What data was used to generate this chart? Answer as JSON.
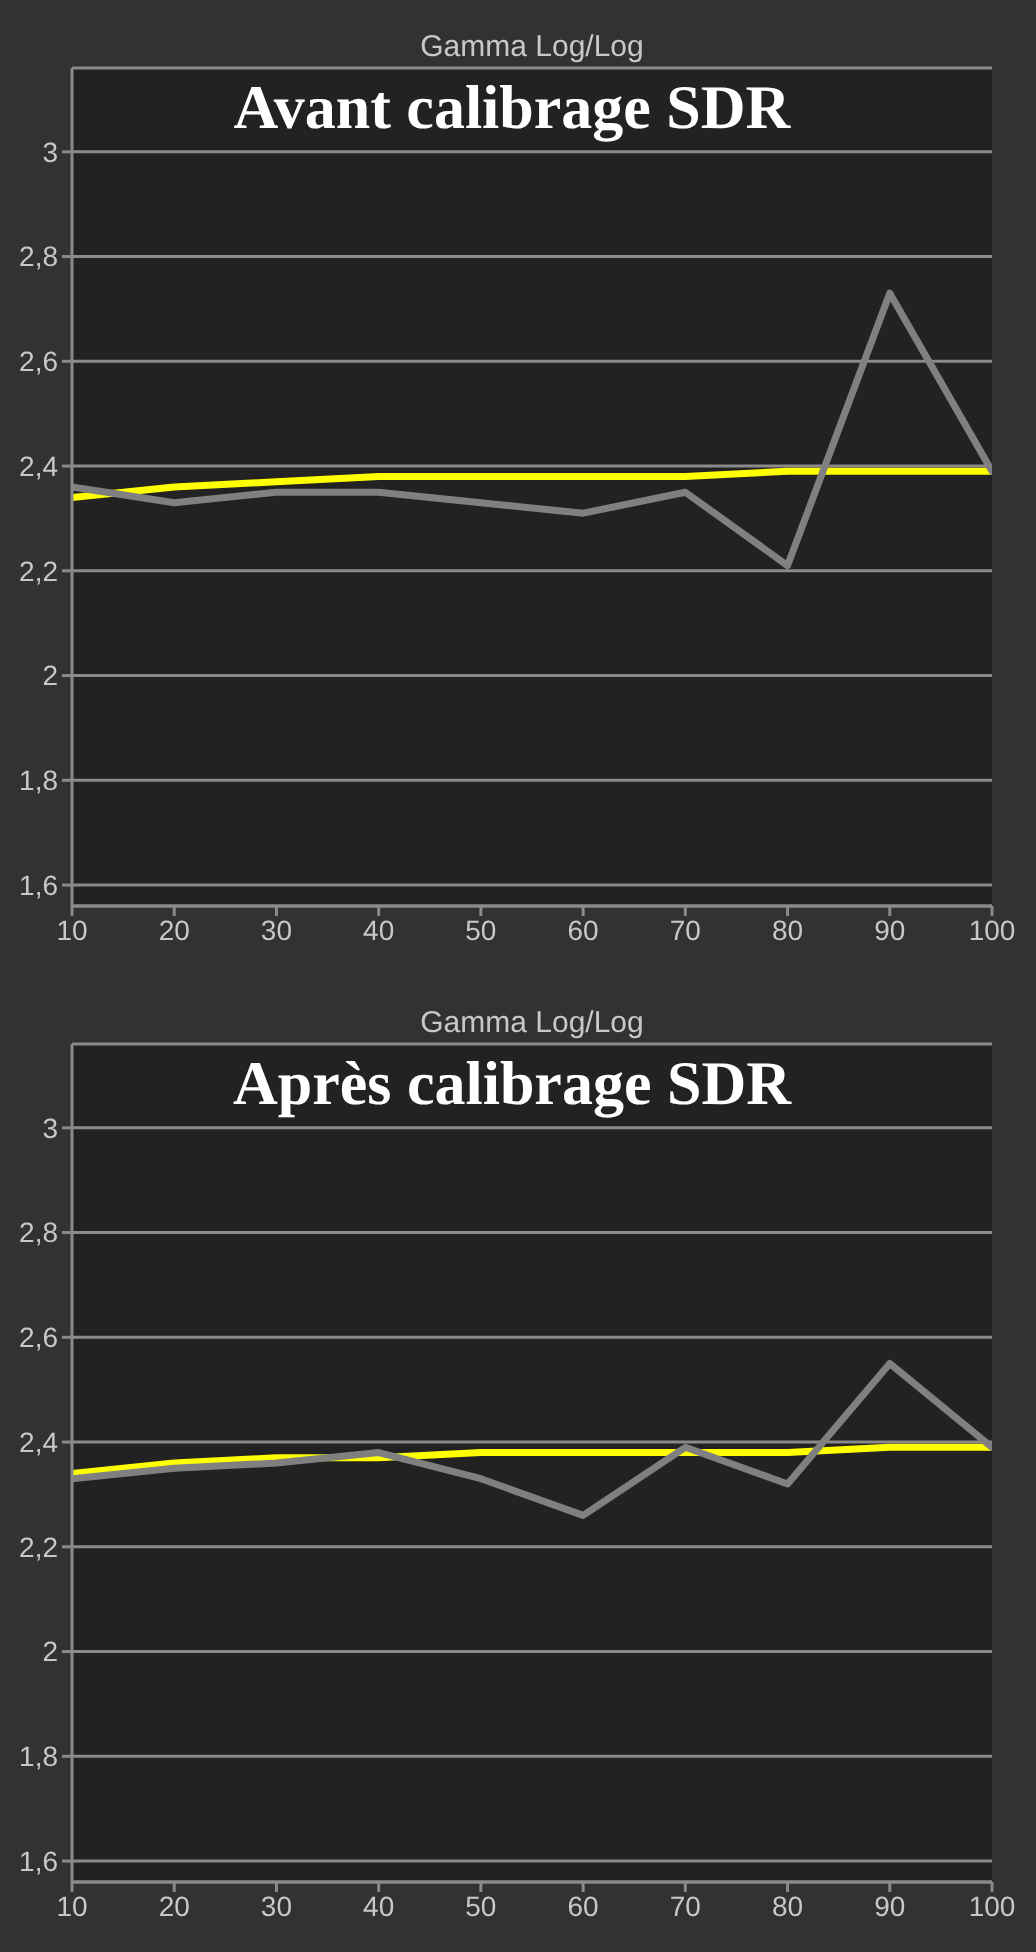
{
  "chart_data": [
    {
      "type": "line",
      "title": "Gamma Log/Log",
      "subtitle": "Avant calibrage SDR",
      "x": [
        10,
        20,
        30,
        40,
        50,
        60,
        70,
        80,
        90,
        100
      ],
      "xlim": [
        10,
        100
      ],
      "xticks": [
        10,
        20,
        30,
        40,
        50,
        60,
        70,
        80,
        90,
        100
      ],
      "ylim": [
        1.56,
        3.16
      ],
      "yticks": [
        {
          "value": 1.6,
          "label": "1,6"
        },
        {
          "value": 1.8,
          "label": "1,8"
        },
        {
          "value": 2,
          "label": "2"
        },
        {
          "value": 2.2,
          "label": "2,2"
        },
        {
          "value": 2.4,
          "label": "2,4"
        },
        {
          "value": 2.6,
          "label": "2,6"
        },
        {
          "value": 2.8,
          "label": "2,8"
        },
        {
          "value": 3,
          "label": "3"
        }
      ],
      "grid": "y",
      "series": [
        {
          "color": "#ffff00",
          "values": [
            2.34,
            2.36,
            2.37,
            2.38,
            2.38,
            2.38,
            2.38,
            2.39,
            2.39,
            2.39
          ]
        },
        {
          "color": "#808080",
          "values": [
            2.36,
            2.33,
            2.35,
            2.35,
            2.33,
            2.31,
            2.35,
            2.21,
            2.73,
            2.39
          ]
        }
      ]
    },
    {
      "type": "line",
      "title": "Gamma Log/Log",
      "subtitle": "Après calibrage SDR",
      "x": [
        10,
        20,
        30,
        40,
        50,
        60,
        70,
        80,
        90,
        100
      ],
      "xlim": [
        10,
        100
      ],
      "xticks": [
        10,
        20,
        30,
        40,
        50,
        60,
        70,
        80,
        90,
        100
      ],
      "ylim": [
        1.56,
        3.16
      ],
      "yticks": [
        {
          "value": 1.6,
          "label": "1,6"
        },
        {
          "value": 1.8,
          "label": "1,8"
        },
        {
          "value": 2,
          "label": "2"
        },
        {
          "value": 2.2,
          "label": "2,2"
        },
        {
          "value": 2.4,
          "label": "2,4"
        },
        {
          "value": 2.6,
          "label": "2,6"
        },
        {
          "value": 2.8,
          "label": "2,8"
        },
        {
          "value": 3,
          "label": "3"
        }
      ],
      "grid": "y",
      "series": [
        {
          "color": "#ffff00",
          "values": [
            2.34,
            2.36,
            2.37,
            2.37,
            2.38,
            2.38,
            2.38,
            2.38,
            2.39,
            2.39
          ]
        },
        {
          "color": "#808080",
          "values": [
            2.33,
            2.35,
            2.36,
            2.38,
            2.33,
            2.26,
            2.39,
            2.32,
            2.55,
            2.39
          ]
        }
      ]
    }
  ]
}
